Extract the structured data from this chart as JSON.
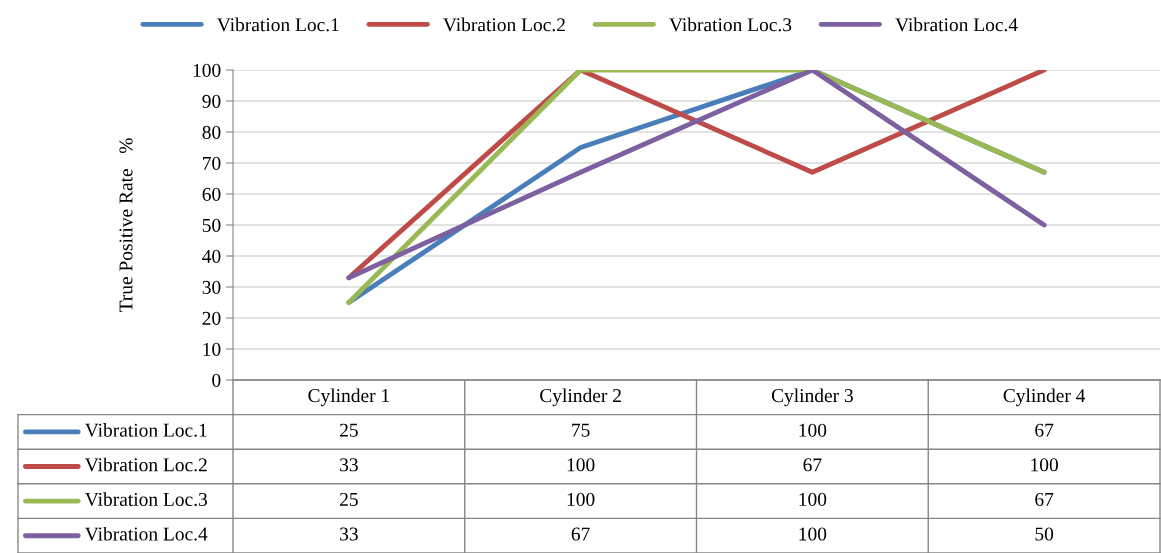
{
  "chart_data": {
    "type": "line",
    "ylabel": "True Positive Rate   %",
    "categories": [
      "Cylinder 1",
      "Cylinder 2",
      "Cylinder 3",
      "Cylinder 4"
    ],
    "series": [
      {
        "name": "Vibration Loc.1",
        "color": "#4a7ebb",
        "values": [
          25,
          75,
          100,
          67
        ]
      },
      {
        "name": "Vibration Loc.2",
        "color": "#be4b48",
        "values": [
          33,
          100,
          67,
          100
        ]
      },
      {
        "name": "Vibration Loc.3",
        "color": "#98b954",
        "values": [
          25,
          100,
          100,
          67
        ]
      },
      {
        "name": "Vibration Loc.4",
        "color": "#7d60a0",
        "values": [
          33,
          67,
          100,
          50
        ]
      }
    ],
    "ylim": [
      0,
      100
    ],
    "yticks": [
      0,
      10,
      20,
      30,
      40,
      50,
      60,
      70,
      80,
      90,
      100
    ],
    "grid": "y",
    "legend": "top",
    "marker": "none",
    "line_style": "solid",
    "data_labels": true
  }
}
